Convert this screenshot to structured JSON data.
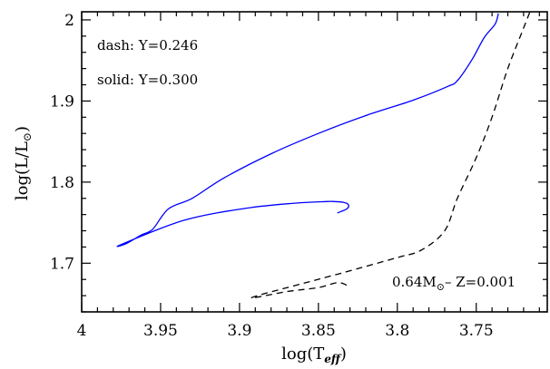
{
  "chart_data": {
    "type": "line",
    "title": "",
    "xlabel": "log(T",
    "xlabel_sub": "eff",
    "xlabel_close": ")",
    "ylabel": "log(L/L",
    "ylabel_sub": "⊙",
    "ylabel_close": ")",
    "x_reversed": true,
    "xlim": [
      4.0,
      3.705
    ],
    "ylim": [
      1.64,
      2.01
    ],
    "xticks": [
      4.0,
      3.95,
      3.9,
      3.85,
      3.8,
      3.75
    ],
    "xtick_labels": [
      "4",
      "3.95",
      "3.9",
      "3.85",
      "3.8",
      "3.75"
    ],
    "yticks": [
      1.7,
      1.8,
      1.9,
      2.0
    ],
    "ytick_labels": [
      "1.7",
      "1.8",
      "1.9",
      "2"
    ],
    "grid": false,
    "annotations": {
      "dash": "dash: Y=0.246",
      "solid": "solid: Y=0.300",
      "mass": "0.64M",
      "mass_sub": "⊙",
      "mass_rest": "– Z=0.001"
    },
    "series": [
      {
        "style": "solid",
        "color": "#0000ff",
        "points": [
          [
            3.838,
            1.762
          ],
          [
            3.832,
            1.767
          ],
          [
            3.831,
            1.772
          ],
          [
            3.834,
            1.775
          ],
          [
            3.84,
            1.776
          ],
          [
            3.845,
            1.776
          ],
          [
            3.865,
            1.774
          ],
          [
            3.895,
            1.768
          ],
          [
            3.935,
            1.753
          ],
          [
            3.975,
            1.723
          ],
          [
            3.972,
            1.724
          ],
          [
            3.962,
            1.735
          ],
          [
            3.955,
            1.742
          ],
          [
            3.945,
            1.767
          ],
          [
            3.93,
            1.78
          ],
          [
            3.91,
            1.805
          ],
          [
            3.88,
            1.835
          ],
          [
            3.85,
            1.86
          ],
          [
            3.82,
            1.882
          ],
          [
            3.79,
            1.901
          ],
          [
            3.768,
            1.918
          ],
          [
            3.762,
            1.925
          ],
          [
            3.753,
            1.95
          ],
          [
            3.745,
            1.978
          ],
          [
            3.738,
            1.995
          ],
          [
            3.736,
            2.008
          ]
        ]
      },
      {
        "style": "dashed",
        "color": "#000000",
        "points": [
          [
            3.832,
            1.673
          ],
          [
            3.838,
            1.676
          ],
          [
            3.85,
            1.67
          ],
          [
            3.87,
            1.665
          ],
          [
            3.892,
            1.657
          ],
          [
            3.885,
            1.662
          ],
          [
            3.86,
            1.675
          ],
          [
            3.835,
            1.688
          ],
          [
            3.8,
            1.707
          ],
          [
            3.785,
            1.716
          ],
          [
            3.77,
            1.74
          ],
          [
            3.762,
            1.78
          ],
          [
            3.75,
            1.83
          ],
          [
            3.74,
            1.88
          ],
          [
            3.73,
            1.94
          ],
          [
            3.72,
            1.99
          ],
          [
            3.716,
            2.01
          ]
        ]
      }
    ]
  }
}
